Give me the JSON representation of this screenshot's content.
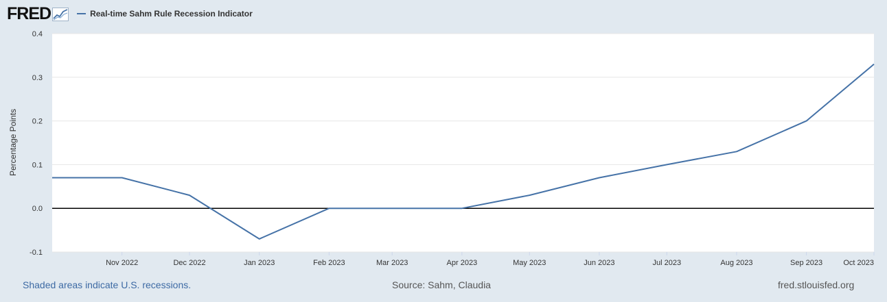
{
  "header": {
    "logo_text": "FRED",
    "series_label": "Real-time Sahm Rule Recession Indicator"
  },
  "footer": {
    "recessions_note": "Shaded areas indicate U.S. recessions.",
    "source": "Source: Sahm, Claudia",
    "site": "fred.stlouisfed.org"
  },
  "colors": {
    "series": "#4572a7",
    "background": "#e1e9f0",
    "plot_background": "#ffffff",
    "zero_line": "#000000",
    "grid": "#e6e6e6"
  },
  "chart_data": {
    "type": "line",
    "ylabel": "Percentage Points",
    "xlabel": "",
    "ylim": [
      -0.1,
      0.4
    ],
    "yticks": [
      "-0.1",
      "0.0",
      "0.1",
      "0.2",
      "0.3",
      "0.4"
    ],
    "xticks": [
      "Nov 2022",
      "Dec 2022",
      "Jan 2023",
      "Feb 2023",
      "Mar 2023",
      "Apr 2023",
      "May 2023",
      "Jun 2023",
      "Jul 2023",
      "Aug 2023",
      "Sep 2023",
      "Oct 2023"
    ],
    "xrange": [
      "2022-10-01",
      "2023-10-01"
    ],
    "grid": true,
    "series": [
      {
        "name": "Real-time Sahm Rule Recession Indicator",
        "x": [
          "2022-10-01",
          "2022-11-01",
          "2022-12-01",
          "2023-01-01",
          "2023-02-01",
          "2023-03-01",
          "2023-04-01",
          "2023-05-01",
          "2023-06-01",
          "2023-07-01",
          "2023-08-01",
          "2023-09-01",
          "2023-10-01"
        ],
        "values": [
          0.07,
          0.07,
          0.03,
          -0.07,
          0.0,
          0.0,
          0.0,
          0.03,
          0.07,
          0.1,
          0.13,
          0.2,
          0.33
        ]
      }
    ]
  }
}
